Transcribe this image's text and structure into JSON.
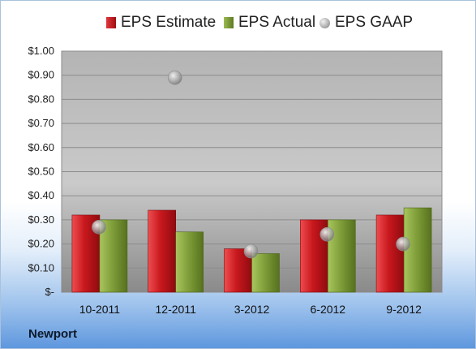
{
  "company": "Newport",
  "chart_data": {
    "type": "bar",
    "categories": [
      "10-2011",
      "12-2011",
      "3-2012",
      "6-2012",
      "9-2012"
    ],
    "series": [
      {
        "name": "EPS Estimate",
        "kind": "bar",
        "color": "#c0161b",
        "values": [
          0.32,
          0.34,
          0.18,
          0.3,
          0.32
        ]
      },
      {
        "name": "EPS Actual",
        "kind": "bar",
        "color": "#7a9a36",
        "values": [
          0.3,
          0.25,
          0.16,
          0.3,
          0.35
        ]
      },
      {
        "name": "EPS GAAP",
        "kind": "marker",
        "color": "#a6a6a6",
        "values": [
          0.27,
          0.89,
          0.17,
          0.24,
          0.2
        ]
      }
    ],
    "ylim": [
      0,
      1.0
    ],
    "yticks": [
      0,
      0.1,
      0.2,
      0.3,
      0.4,
      0.5,
      0.6,
      0.7,
      0.8,
      0.9,
      1.0
    ],
    "ytick_labels": [
      "$-",
      "$0.10",
      "$0.20",
      "$0.30",
      "$0.40",
      "$0.50",
      "$0.60",
      "$0.70",
      "$0.80",
      "$0.90",
      "$1.00"
    ],
    "legend": [
      "EPS Estimate",
      "EPS Actual",
      "EPS GAAP"
    ],
    "legend_position": "top",
    "grid": true
  }
}
